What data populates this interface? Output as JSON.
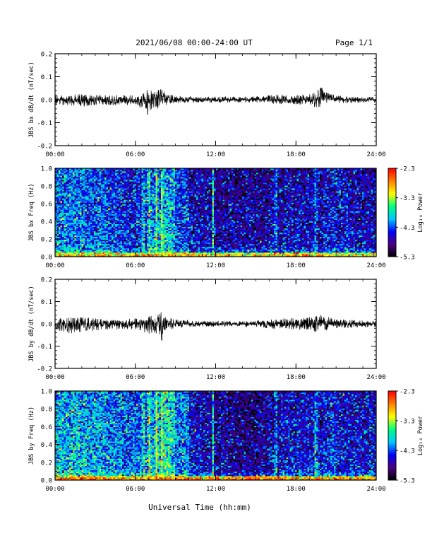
{
  "header": {
    "title": "2021/06/08  00:00-24:00 UT",
    "page": "Page 1/1"
  },
  "xlabel": "Universal Time (hh:mm)",
  "x_ticks": [
    "00:00",
    "06:00",
    "12:00",
    "18:00",
    "24:00"
  ],
  "colorbar": {
    "label": "Log₁₀ Power",
    "ticks": [
      "-2.3",
      "-3.3",
      "-4.3",
      "-5.3"
    ],
    "range": [
      -5.3,
      -2.3
    ],
    "colors": [
      "#000000",
      "#4b0082",
      "#0000ff",
      "#00c8ff",
      "#00ff80",
      "#ffff00",
      "#ff8000",
      "#ff0000"
    ]
  },
  "chart_data": [
    {
      "type": "line",
      "ylabel": "JBS bx dB/dt (nT/sec)",
      "ylim": [
        -0.2,
        0.2
      ],
      "y_ticks": [
        "0.2",
        "0.1",
        "0.0",
        "-0.1",
        "-0.2"
      ],
      "xlim_hours": [
        0,
        24
      ],
      "series_color": "#000000",
      "envelope": {
        "hours": [
          0,
          1,
          2,
          3,
          4,
          5,
          6,
          6.6,
          7,
          7.3,
          7.6,
          8,
          8.5,
          9,
          10,
          11,
          12,
          13,
          14,
          15,
          16,
          16.5,
          17,
          18,
          19,
          19.5,
          19.9,
          20.3,
          21,
          22,
          23,
          24
        ],
        "upper": [
          0.02,
          0.02,
          0.025,
          0.02,
          0.02,
          0.02,
          0.02,
          0.03,
          0.055,
          0.03,
          0.04,
          0.05,
          0.025,
          0.015,
          0.015,
          0.012,
          0.015,
          0.012,
          0.012,
          0.015,
          0.02,
          0.025,
          0.02,
          0.02,
          0.025,
          0.035,
          0.06,
          0.03,
          0.02,
          0.015,
          0.012,
          0.012
        ],
        "lower": [
          -0.025,
          -0.025,
          -0.03,
          -0.025,
          -0.025,
          -0.025,
          -0.025,
          -0.04,
          -0.08,
          -0.045,
          -0.04,
          -0.04,
          -0.02,
          -0.015,
          -0.015,
          -0.012,
          -0.015,
          -0.012,
          -0.012,
          -0.015,
          -0.015,
          -0.02,
          -0.02,
          -0.02,
          -0.025,
          -0.035,
          -0.04,
          -0.02,
          -0.015,
          -0.015,
          -0.012,
          -0.012
        ]
      }
    },
    {
      "type": "heatmap",
      "ylabel": "JBS bx Freq (Hz)",
      "ylim": [
        0.0,
        1.0
      ],
      "y_ticks": [
        "1.0",
        "0.8",
        "0.6",
        "0.4",
        "0.2",
        "0.0"
      ],
      "xlim_hours": [
        0,
        24
      ],
      "zlim": [
        -5.3,
        -2.3
      ],
      "hour_level": [
        -4.1,
        -4.1,
        -4.2,
        -4.2,
        -4.3,
        -4.4,
        -4.4,
        -4.1,
        -3.9,
        -4.3,
        -4.6,
        -4.6,
        -4.7,
        -4.7,
        -4.7,
        -4.7,
        -4.6,
        -4.6,
        -4.6,
        -4.6,
        -4.5,
        -4.5,
        -4.6,
        -4.6
      ],
      "low_freq_level": -3.4,
      "bright_bands_hours": [
        6.6,
        7.0,
        7.6,
        8.0,
        11.8,
        16.5,
        19.5
      ]
    },
    {
      "type": "line",
      "ylabel": "JBS by dB/dt (nT/sec)",
      "ylim": [
        -0.2,
        0.2
      ],
      "y_ticks": [
        "0.2",
        "0.1",
        "0.0",
        "-0.1",
        "-0.2"
      ],
      "xlim_hours": [
        0,
        24
      ],
      "series_color": "#000000",
      "envelope": {
        "hours": [
          0,
          1,
          2,
          3,
          4,
          5,
          6,
          6.6,
          7,
          7.3,
          7.6,
          8,
          8.5,
          9,
          10,
          11,
          12,
          13,
          14,
          15,
          16,
          16.5,
          17,
          18,
          19,
          19.5,
          19.9,
          20.3,
          21,
          22,
          23,
          24
        ],
        "upper": [
          0.025,
          0.03,
          0.03,
          0.025,
          0.02,
          0.02,
          0.025,
          0.03,
          0.05,
          0.035,
          0.045,
          0.065,
          0.03,
          0.02,
          0.015,
          0.012,
          0.015,
          0.012,
          0.012,
          0.015,
          0.02,
          0.025,
          0.025,
          0.025,
          0.03,
          0.04,
          0.05,
          0.035,
          0.02,
          0.02,
          0.015,
          0.015
        ],
        "lower": [
          -0.03,
          -0.045,
          -0.04,
          -0.03,
          -0.025,
          -0.025,
          -0.025,
          -0.04,
          -0.05,
          -0.04,
          -0.05,
          -0.08,
          -0.03,
          -0.02,
          -0.015,
          -0.012,
          -0.015,
          -0.012,
          -0.012,
          -0.015,
          -0.02,
          -0.025,
          -0.025,
          -0.025,
          -0.03,
          -0.035,
          -0.035,
          -0.03,
          -0.02,
          -0.02,
          -0.015,
          -0.015
        ]
      }
    },
    {
      "type": "heatmap",
      "ylabel": "JBS by Freq (Hz)",
      "ylim": [
        0.0,
        1.0
      ],
      "y_ticks": [
        "1.0",
        "0.8",
        "0.6",
        "0.4",
        "0.2",
        "0.0"
      ],
      "xlim_hours": [
        0,
        24
      ],
      "zlim": [
        -5.3,
        -2.3
      ],
      "hour_level": [
        -3.9,
        -3.9,
        -4.0,
        -4.0,
        -4.1,
        -4.2,
        -4.2,
        -3.9,
        -3.7,
        -4.1,
        -4.5,
        -4.6,
        -4.7,
        -4.8,
        -4.8,
        -4.7,
        -4.6,
        -4.5,
        -4.5,
        -4.5,
        -4.4,
        -4.5,
        -4.5,
        -4.5
      ],
      "low_freq_level": -3.2,
      "bright_bands_hours": [
        6.6,
        7.0,
        7.6,
        8.0,
        11.8,
        16.5,
        19.5
      ]
    }
  ]
}
